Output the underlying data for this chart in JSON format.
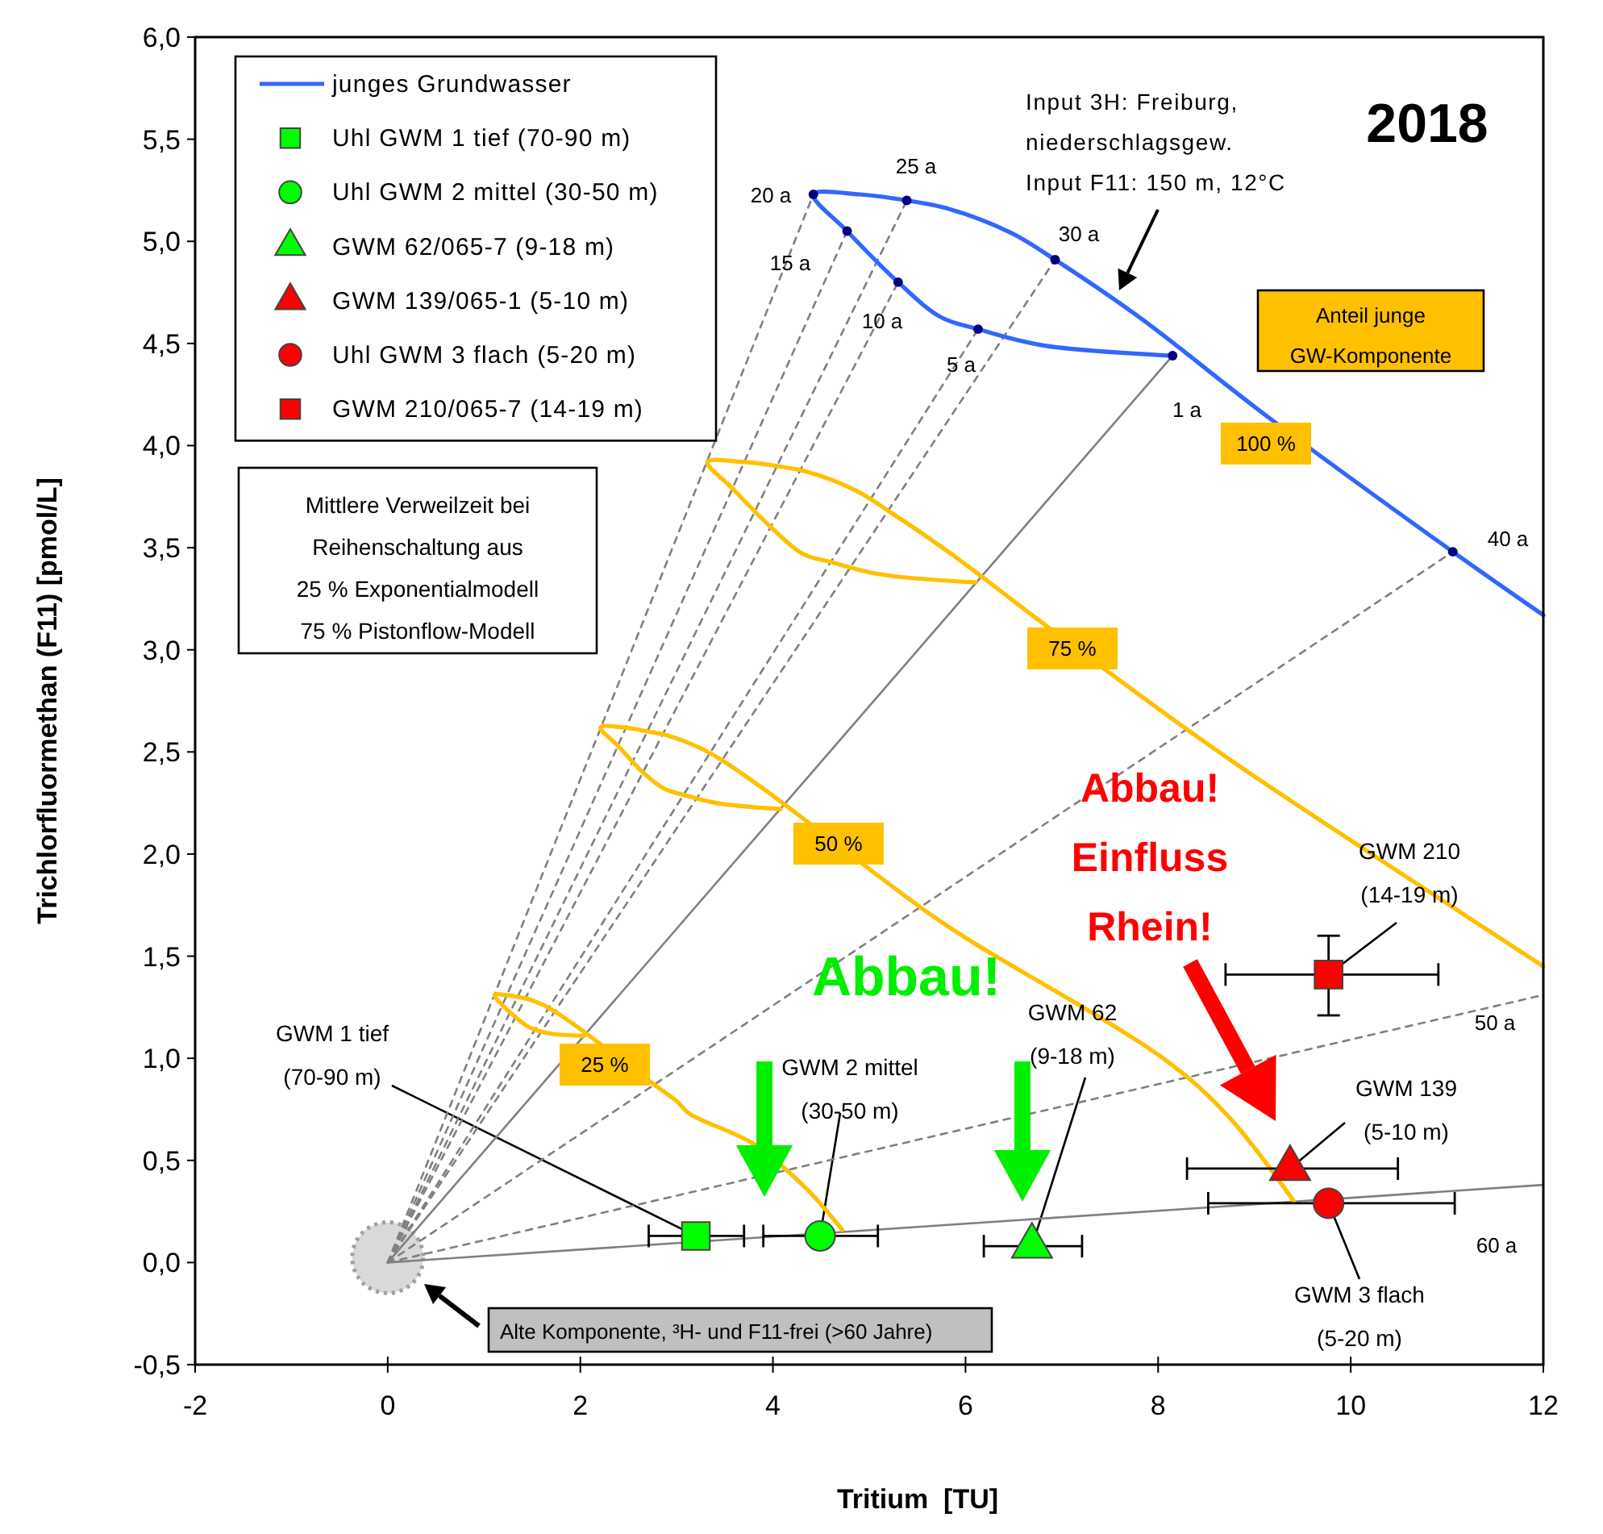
{
  "chart_data": {
    "type": "scatter",
    "xlabel": "Tritium  [TU]",
    "ylabel": "Trichlorfluormethan (F11) [pmol/L]",
    "xlim": [
      -2,
      12
    ],
    "xticks": [
      -2,
      0,
      2,
      4,
      6,
      8,
      10,
      12
    ],
    "ylim": [
      -0.5,
      6
    ],
    "yticks": [
      {
        "value": -0.5,
        "label": "-0,5"
      },
      {
        "value": 0,
        "label": "0,0"
      },
      {
        "value": 0.5,
        "label": "0,5"
      },
      {
        "value": 1,
        "label": "1,0"
      },
      {
        "value": 1.5,
        "label": "1,5"
      },
      {
        "value": 2,
        "label": "2,0"
      },
      {
        "value": 2.5,
        "label": "2,5"
      },
      {
        "value": 3,
        "label": "3,0"
      },
      {
        "value": 3.5,
        "label": "3,5"
      },
      {
        "value": 4,
        "label": "4,0"
      },
      {
        "value": 4.5,
        "label": "4,5"
      },
      {
        "value": 5,
        "label": "5,0"
      },
      {
        "value": 5.5,
        "label": "5,5"
      },
      {
        "value": 6,
        "label": "6,0"
      }
    ],
    "legend": "top left",
    "series": [
      {
        "type": "line",
        "color": "#808080",
        "line_style": "solid",
        "x": [
          0,
          8.15
        ],
        "values": [
          0,
          4.44
        ]
      },
      {
        "type": "line",
        "color": "#808080",
        "line_style": "dashed",
        "x": [
          0,
          6.13
        ],
        "values": [
          0,
          4.57
        ]
      },
      {
        "type": "line",
        "color": "#808080",
        "line_style": "dashed",
        "x": [
          0,
          5.3
        ],
        "values": [
          0,
          4.8
        ]
      },
      {
        "type": "line",
        "color": "#808080",
        "line_style": "dashed",
        "x": [
          0,
          4.77
        ],
        "values": [
          0,
          5.05
        ]
      },
      {
        "type": "line",
        "color": "#808080",
        "line_style": "dashed",
        "x": [
          0,
          4.42
        ],
        "values": [
          0,
          5.23
        ]
      },
      {
        "type": "line",
        "color": "#808080",
        "line_style": "dashed",
        "x": [
          0,
          5.39
        ],
        "values": [
          0,
          5.2
        ]
      },
      {
        "type": "line",
        "color": "#808080",
        "line_style": "dashed",
        "x": [
          0,
          6.93
        ],
        "values": [
          0,
          4.91
        ]
      },
      {
        "type": "line",
        "color": "#808080",
        "line_style": "dashed",
        "x": [
          0,
          11.06
        ],
        "values": [
          0,
          3.48
        ]
      },
      {
        "type": "line",
        "color": "#808080",
        "line_style": "dashed",
        "x": [
          0,
          12
        ],
        "values": [
          0,
          1.31
        ]
      },
      {
        "type": "line",
        "color": "#808080",
        "line_style": "solid",
        "x": [
          0,
          12
        ],
        "values": [
          0,
          0.38
        ]
      },
      {
        "type": "line",
        "color": "#ffc000",
        "x": [
          6.11,
          5.11,
          4.6,
          4.31,
          3.98,
          3.58,
          3.32,
          3.68,
          4.04,
          4.37,
          4.86,
          5.2,
          5.85,
          6.86,
          8.3,
          9.0,
          12
        ],
        "values": [
          3.33,
          3.37,
          3.43,
          3.47,
          3.6,
          3.79,
          3.92,
          3.92,
          3.9,
          3.87,
          3.78,
          3.68,
          3.47,
          3.11,
          2.61,
          2.38,
          1.45
        ]
      },
      {
        "type": "line",
        "color": "#ffc000",
        "x": [
          4.08,
          3.41,
          3.07,
          2.87,
          2.65,
          2.39,
          2.21,
          2.45,
          2.7,
          2.91,
          3.24,
          3.47,
          3.9,
          4.57,
          5.53,
          6.0,
          8.08,
          8.74,
          9.41
        ],
        "values": [
          2.22,
          2.25,
          2.29,
          2.32,
          2.4,
          2.53,
          2.62,
          2.62,
          2.6,
          2.58,
          2.52,
          2.46,
          2.32,
          null,
          1.74,
          1.59,
          0.99,
          0.71,
          0.3
        ]
      },
      {
        "type": "line",
        "color": "#ffc000",
        "x": [
          2.04,
          1.7,
          1.53,
          1.44,
          1.33,
          1.19,
          1.11,
          1.23,
          1.35,
          1.46,
          1.62,
          1.73,
          1.95,
          2.29,
          2.77,
          3.0,
          3.13,
          3.8,
          4.35,
          4.72
        ],
        "values": [
          1.11,
          1.12,
          1.14,
          1.16,
          1.2,
          1.26,
          1.31,
          1.31,
          1.3,
          1.29,
          1.26,
          1.23,
          1.16,
          null,
          0.87,
          0.79,
          0.73,
          0.58,
          0.36,
          0.16
        ]
      },
      {
        "type": "line",
        "name": "junges Grundwasser",
        "color": "#3366ff",
        "x": [
          8.15,
          6.81,
          6.13,
          5.74,
          5.3,
          4.77,
          4.42,
          4.9,
          5.39,
          5.82,
          6.48,
          6.93,
          7.8,
          9.14,
          11.06,
          12
        ],
        "values": [
          4.44,
          4.49,
          4.57,
          4.63,
          4.8,
          5.05,
          5.23,
          5.23,
          5.2,
          5.16,
          5.04,
          4.91,
          4.63,
          4.14,
          3.48,
          3.17
        ]
      },
      {
        "type": "scatter",
        "color": "#000080",
        "marker": "circle",
        "x": [
          8.15,
          6.13,
          5.3,
          4.77,
          4.42,
          5.39,
          6.93,
          11.06
        ],
        "values": [
          4.44,
          4.57,
          4.8,
          5.05,
          5.23,
          5.2,
          4.91,
          3.48
        ]
      },
      {
        "name": "Uhl GWM 1 tief (70-90 m)",
        "color": "#00ff00",
        "marker": "square",
        "x": [
          3.2
        ],
        "values": [
          0.13
        ],
        "xerrors": [
          [
            2.71,
            3.7
          ]
        ]
      },
      {
        "name": "Uhl GWM 2 mittel (30-50 m)",
        "color": "#00ff00",
        "marker": "circle",
        "x": [
          4.49
        ],
        "values": [
          0.13
        ],
        "xerrors": [
          [
            3.9,
            5.09
          ]
        ]
      },
      {
        "name": "GWM 62/065-7 (9-18 m)",
        "color": "#00ff00",
        "marker": "triangle",
        "x": [
          6.69
        ],
        "values": [
          0.08
        ],
        "xerrors": [
          [
            6.19,
            7.21
          ]
        ]
      },
      {
        "name": "GWM 139/065-1 (5-10 m)",
        "color": "#ff0000",
        "marker": "triangle",
        "x": [
          9.37
        ],
        "values": [
          0.46
        ],
        "xerrors": [
          [
            8.3,
            10.49
          ]
        ]
      },
      {
        "name": "Uhl GWM 3 flach (5-20 m)",
        "color": "#ff0000",
        "marker": "circle",
        "x": [
          9.77
        ],
        "values": [
          0.29
        ],
        "xerrors": [
          [
            8.52,
            11.08
          ]
        ]
      },
      {
        "name": "GWM 210/065-7 (14-19 m)",
        "color": "#ff0000",
        "marker": "square",
        "x": [
          9.77
        ],
        "values": [
          1.41
        ],
        "xerrors": [
          [
            8.7,
            10.91
          ]
        ],
        "errors": [
          [
            1.21,
            1.6
          ]
        ]
      }
    ],
    "annotations": [
      "2018",
      "Input 3H: Freiburg,\nniederschlagsgew.\nInput F11: 150 m, 12°C",
      "Anteil junge\nGW-Komponente",
      "Mittlere Verweilzeit bei\nReihenschaltung aus\n25 % Exponentialmodell\n75 % Pistonflow-Modell",
      "Alte Komponente, ³H- und F11-frei (>60 Jahre)",
      "Abbau!",
      "Abbau!\nEinfluss\nRhein!",
      "1 a",
      "5 a",
      "10 a",
      "15 a",
      "20 a",
      "25 a",
      "30 a",
      "40 a",
      "50 a",
      "60 a",
      {
        "text": "GWM 1 tief\n(70-90 m)",
        "x": 3.2,
        "y": 0.13
      },
      {
        "text": "GWM 2 mittel\n(30-50 m)",
        "x": 4.49,
        "y": 0.13
      },
      {
        "text": "GWM 62\n(9-18 m)",
        "x": 6.69,
        "y": 0.08
      },
      {
        "text": "GWM 210\n(14-19 m)",
        "x": 9.77,
        "y": 1.41
      },
      {
        "text": "GWM 139\n(5-10 m)",
        "x": 9.37,
        "y": 0.46
      },
      {
        "text": "GWM 3 flach\n(5-20 m)",
        "x": 9.77,
        "y": 0.29
      },
      "100 %",
      "75 %",
      "50 %",
      "25 %"
    ]
  }
}
